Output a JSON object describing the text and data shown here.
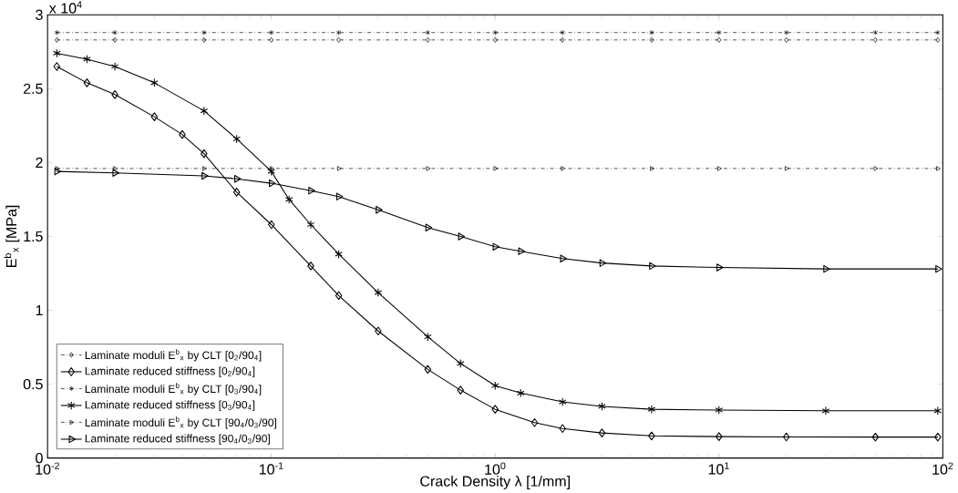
{
  "chart_data": {
    "type": "line",
    "xlabel": "Crack Density λ [1/mm]",
    "ylabel": "E$^{b}$$_{x}$ [MPa]",
    "log": "x",
    "grid": false,
    "legend": "bottom left",
    "xlim": [
      0.01,
      100
    ],
    "ylim": [
      0,
      3
    ],
    "xticks": [
      {
        "value": 0.01,
        "label": "10$^{-2}$"
      },
      {
        "value": 0.1,
        "label": "10$^{-1}$"
      },
      {
        "value": 1,
        "label": "10$^{0}$"
      },
      {
        "value": 10,
        "label": "10$^{1}$"
      },
      {
        "value": 100,
        "label": "10$^{2}$"
      }
    ],
    "yticks": [
      0,
      0.5,
      1,
      1.5,
      2,
      2.5,
      3
    ],
    "annotations": [
      "x 10$^{4}$"
    ],
    "series": [
      {
        "name": "Laminate moduli E$^{b}$$_{x}$ by CLT [0$_{2}$/90$_{4}$]",
        "color": "#000000",
        "marker": "diamond",
        "line_style": "dashdot",
        "x": [
          0.011,
          0.02,
          0.05,
          0.1,
          0.2,
          0.5,
          1,
          2,
          5,
          10,
          20,
          50,
          95
        ],
        "values": [
          2.83,
          2.83,
          2.83,
          2.83,
          2.83,
          2.83,
          2.83,
          2.83,
          2.83,
          2.83,
          2.83,
          2.83,
          2.83
        ]
      },
      {
        "name": "Laminate reduced stiffness [0$_{2}$/90$_{4}$]",
        "color": "#000000",
        "marker": "diamond",
        "line_style": "solid",
        "x": [
          0.011,
          0.015,
          0.02,
          0.03,
          0.04,
          0.05,
          0.07,
          0.1,
          0.15,
          0.2,
          0.3,
          0.5,
          0.7,
          1,
          1.5,
          2,
          3,
          5,
          10,
          20,
          50,
          95
        ],
        "values": [
          2.65,
          2.54,
          2.46,
          2.31,
          2.19,
          2.06,
          1.8,
          1.58,
          1.3,
          1.1,
          0.86,
          0.6,
          0.46,
          0.33,
          0.24,
          0.2,
          0.17,
          0.15,
          0.145,
          0.143,
          0.142,
          0.142
        ]
      },
      {
        "name": "Laminate moduli E$^{b}$$_{x}$ by CLT [0$_{3}$/90$_{4}$]",
        "color": "#000000",
        "marker": "cross",
        "line_style": "dashdot",
        "x": [
          0.011,
          0.02,
          0.05,
          0.1,
          0.2,
          0.5,
          1,
          2,
          5,
          10,
          20,
          50,
          95
        ],
        "values": [
          2.88,
          2.88,
          2.88,
          2.88,
          2.88,
          2.88,
          2.88,
          2.88,
          2.88,
          2.88,
          2.88,
          2.88,
          2.88
        ]
      },
      {
        "name": "Laminate reduced stiffness [0$_{3}$/90$_{4}$]",
        "color": "#000000",
        "marker": "cross",
        "line_style": "solid",
        "x": [
          0.011,
          0.015,
          0.02,
          0.03,
          0.05,
          0.07,
          0.1,
          0.12,
          0.15,
          0.2,
          0.3,
          0.5,
          0.7,
          1,
          1.3,
          2,
          3,
          5,
          10,
          30,
          95
        ],
        "values": [
          2.74,
          2.7,
          2.65,
          2.54,
          2.35,
          2.16,
          1.94,
          1.75,
          1.58,
          1.38,
          1.12,
          0.82,
          0.64,
          0.49,
          0.44,
          0.38,
          0.35,
          0.33,
          0.325,
          0.32,
          0.32
        ]
      },
      {
        "name": "Laminate moduli E$^{b}$$_{x}$ by CLT [90$_{4}$/0$_{3}$/90]",
        "color": "#000000",
        "marker": "triangle",
        "line_style": "dashdot",
        "x": [
          0.011,
          0.02,
          0.05,
          0.1,
          0.2,
          0.5,
          1,
          2,
          5,
          10,
          20,
          50,
          95
        ],
        "values": [
          1.96,
          1.96,
          1.96,
          1.96,
          1.96,
          1.96,
          1.96,
          1.96,
          1.96,
          1.96,
          1.96,
          1.96,
          1.96
        ]
      },
      {
        "name": "Laminate reduced stiffness [90$_{4}$/0$_{3}$/90]",
        "color": "#000000",
        "marker": "triangle",
        "line_style": "solid",
        "x": [
          0.011,
          0.02,
          0.05,
          0.07,
          0.1,
          0.15,
          0.2,
          0.3,
          0.5,
          0.7,
          1,
          1.3,
          2,
          3,
          5,
          10,
          30,
          95
        ],
        "values": [
          1.94,
          1.93,
          1.91,
          1.89,
          1.86,
          1.81,
          1.77,
          1.68,
          1.56,
          1.5,
          1.43,
          1.4,
          1.35,
          1.32,
          1.3,
          1.29,
          1.28,
          1.28
        ]
      }
    ]
  }
}
